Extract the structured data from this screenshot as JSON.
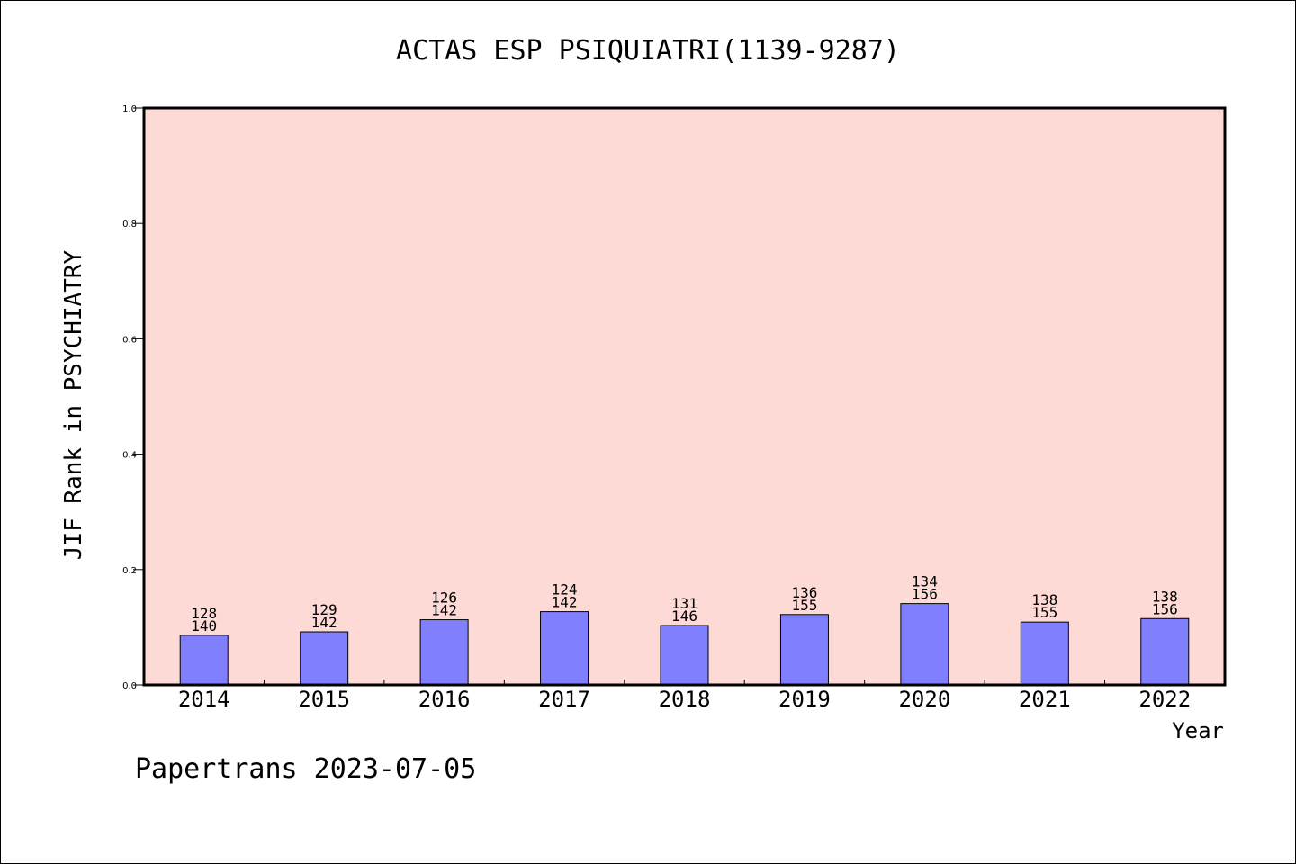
{
  "chart_data": {
    "type": "bar",
    "title": "ACTAS ESP PSIQUIATRI(1139-9287)",
    "xlabel": "Year",
    "ylabel": "JIF Rank in PSYCHIATRY",
    "ylim": [
      0,
      1.0
    ],
    "yticks": [
      "0.0",
      "0.2",
      "0.4",
      "0.6",
      "0.8",
      "1.0"
    ],
    "categories": [
      "2014",
      "2015",
      "2016",
      "2017",
      "2018",
      "2019",
      "2020",
      "2021",
      "2022"
    ],
    "values": [
      0.086,
      0.092,
      0.113,
      0.127,
      0.103,
      0.122,
      0.141,
      0.109,
      0.115
    ],
    "rank_labels": [
      "128",
      "129",
      "126",
      "124",
      "131",
      "136",
      "134",
      "138",
      "138"
    ],
    "total_labels": [
      "140",
      "142",
      "142",
      "142",
      "146",
      "155",
      "156",
      "155",
      "156"
    ],
    "bar_color": "#8080ff",
    "plot_background": "#fddad6",
    "grid": false,
    "legend": "none"
  },
  "footer": "Papertrans 2023-07-05"
}
